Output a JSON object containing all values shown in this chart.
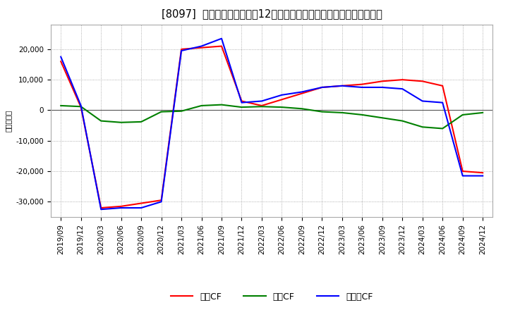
{
  "title": "[8097]  キャッシュフローの12か月移動合計の対前年同期増減額の推移",
  "ylabel": "（百万円）",
  "background_color": "#ffffff",
  "plot_bg_color": "#ffffff",
  "grid_color": "#999999",
  "ylim": [
    -35000,
    28000
  ],
  "yticks": [
    -30000,
    -20000,
    -10000,
    0,
    10000,
    20000
  ],
  "x_labels": [
    "2019/09",
    "2019/12",
    "2020/03",
    "2020/06",
    "2020/09",
    "2020/12",
    "2021/03",
    "2021/06",
    "2021/09",
    "2021/12",
    "2022/03",
    "2022/06",
    "2022/09",
    "2022/12",
    "2023/03",
    "2023/06",
    "2023/09",
    "2023/12",
    "2024/03",
    "2024/06",
    "2024/09",
    "2024/12"
  ],
  "operating_cf": [
    16000,
    1000,
    -32000,
    -31500,
    -30500,
    -29500,
    20000,
    20500,
    21000,
    3000,
    1500,
    3500,
    5500,
    7500,
    8000,
    8500,
    9500,
    10000,
    9500,
    8000,
    -20000,
    -20500
  ],
  "investing_cf": [
    1500,
    1200,
    -3500,
    -4000,
    -3800,
    -500,
    -300,
    1500,
    1800,
    1000,
    1200,
    1000,
    500,
    -500,
    -800,
    -1500,
    -2500,
    -3500,
    -5500,
    -6000,
    -1500,
    -800
  ],
  "free_cf": [
    17500,
    1500,
    -32500,
    -32000,
    -32000,
    -30000,
    19500,
    21000,
    23500,
    2500,
    3000,
    5000,
    6000,
    7500,
    8000,
    7500,
    7500,
    7000,
    3000,
    2500,
    -21500,
    -21500
  ],
  "operating_color": "#ff0000",
  "investing_color": "#008000",
  "free_color": "#0000ff",
  "line_width": 1.5,
  "legend_labels": [
    "営業CF",
    "投資CF",
    "フリーCF"
  ],
  "title_fontsize": 10.5,
  "axis_fontsize": 7.5,
  "legend_fontsize": 9
}
